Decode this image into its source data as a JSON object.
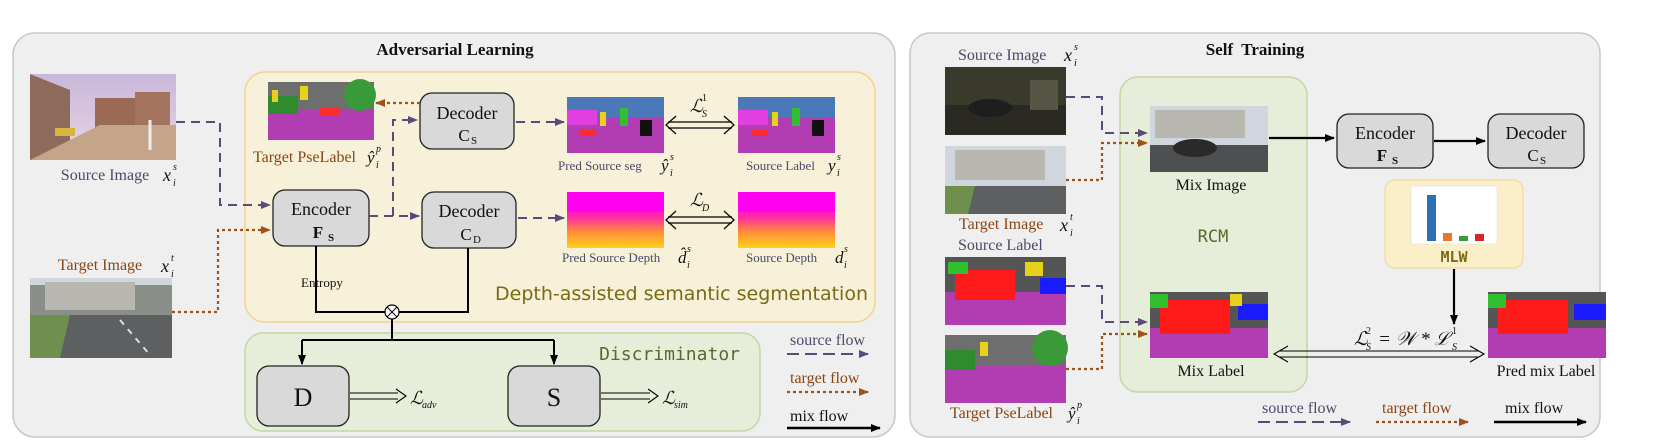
{
  "adversarial": {
    "title": "Adversarial Learning",
    "source_image_label": "Source Image",
    "target_image_label": "Target Image",
    "target_pselabel_label": "Target PseLabel",
    "encoder_label": "Encoder",
    "encoder_sub": "F",
    "encoder_sub_index": "S",
    "decoder_s_label": "Decoder",
    "decoder_s_sub": "C",
    "decoder_s_sub_index": "S",
    "decoder_d_label": "Decoder",
    "decoder_d_sub": "C",
    "decoder_d_sub_index": "D",
    "pred_source_seg_label": "Pred Source seg",
    "source_label_label": "Source Label",
    "pred_source_depth_label": "Pred Source Depth",
    "source_depth_label": "Source Depth",
    "loss_s1": "ℒ",
    "loss_s1_sub": "S",
    "loss_s1_sup": "1",
    "loss_d": "ℒ",
    "loss_d_sub": "D",
    "depth_panel_title": "Depth-assisted semantic segmentation",
    "entropy_label": "Entropy",
    "discriminator_title": "Discriminator",
    "d_label": "D",
    "s_label": "S",
    "loss_adv": "ℒ",
    "loss_adv_sub": "adv",
    "loss_sim": "ℒ",
    "loss_sim_sub": "sim",
    "legend_source": "source flow",
    "legend_target": "target flow",
    "legend_mix": "mix flow",
    "sym_xs": "x",
    "sym_xs_sub": "i",
    "sym_xs_sup": "s",
    "sym_xt": "x",
    "sym_xt_sub": "i",
    "sym_xt_sup": "t",
    "sym_yp": "ŷ",
    "sym_yp_sub": "i",
    "sym_yp_sup": "p",
    "sym_ys_hat": "ŷ",
    "sym_ys_hat_sub": "i",
    "sym_ys_hat_sup": "s",
    "sym_ys": "y",
    "sym_ys_sub": "i",
    "sym_ys_sup": "s",
    "sym_d_hat": "d̂",
    "sym_d_hat_sub": "i",
    "sym_d_hat_sup": "s",
    "sym_d": "d",
    "sym_d_sub": "i",
    "sym_d_sup": "s"
  },
  "self_training": {
    "title": "Self  Training",
    "source_image_label": "Source Image",
    "target_image_label": "Target Image",
    "source_label_label": "Source Label",
    "target_pselabel_label": "Target PseLabel",
    "mix_image_label": "Mix Image",
    "mix_label_label": "Mix Label",
    "rcm_label": "RCM",
    "mlw_label": "MLW",
    "encoder_label": "Encoder",
    "encoder_sub": "F",
    "encoder_sub_index": "S",
    "decoder_label": "Decoder",
    "decoder_sub": "C",
    "decoder_sub_index": "S",
    "pred_mix_label": "Pred mix Label",
    "formula_lhs": "ℒ",
    "formula_lhs_sub": "S",
    "formula_lhs_sup": "2",
    "formula_eq": "= 𝒲 * ℒ",
    "formula_rhs_sub": "S",
    "formula_rhs_sup": "1",
    "legend_source": "source flow",
    "legend_target": "target flow",
    "legend_mix": "mix flow",
    "sym_xs": "x",
    "sym_xs_sub": "i",
    "sym_xs_sup": "s",
    "sym_xt": "x",
    "sym_xt_sub": "i",
    "sym_xt_sup": "t",
    "sym_yp": "ŷ",
    "sym_yp_sub": "i",
    "sym_yp_sup": "p"
  },
  "colors": {
    "panel_bg": "#efefef",
    "panel_stroke": "#c8c8c8",
    "yellow_panel": "#f7f1d9",
    "yellow_stroke": "#f0d48a",
    "green_panel": "#e6edd9",
    "green_stroke": "#c3d6a6",
    "box_fill": "#d9d9d9",
    "source_flow": "#5a4a7a",
    "target_flow": "#a0521d",
    "mix_flow": "#000000",
    "olive_text": "#7a6a12",
    "brown_text": "#8b4513",
    "slate_text": "#4a4a6a",
    "mlw_bg": "#fbefc9"
  }
}
